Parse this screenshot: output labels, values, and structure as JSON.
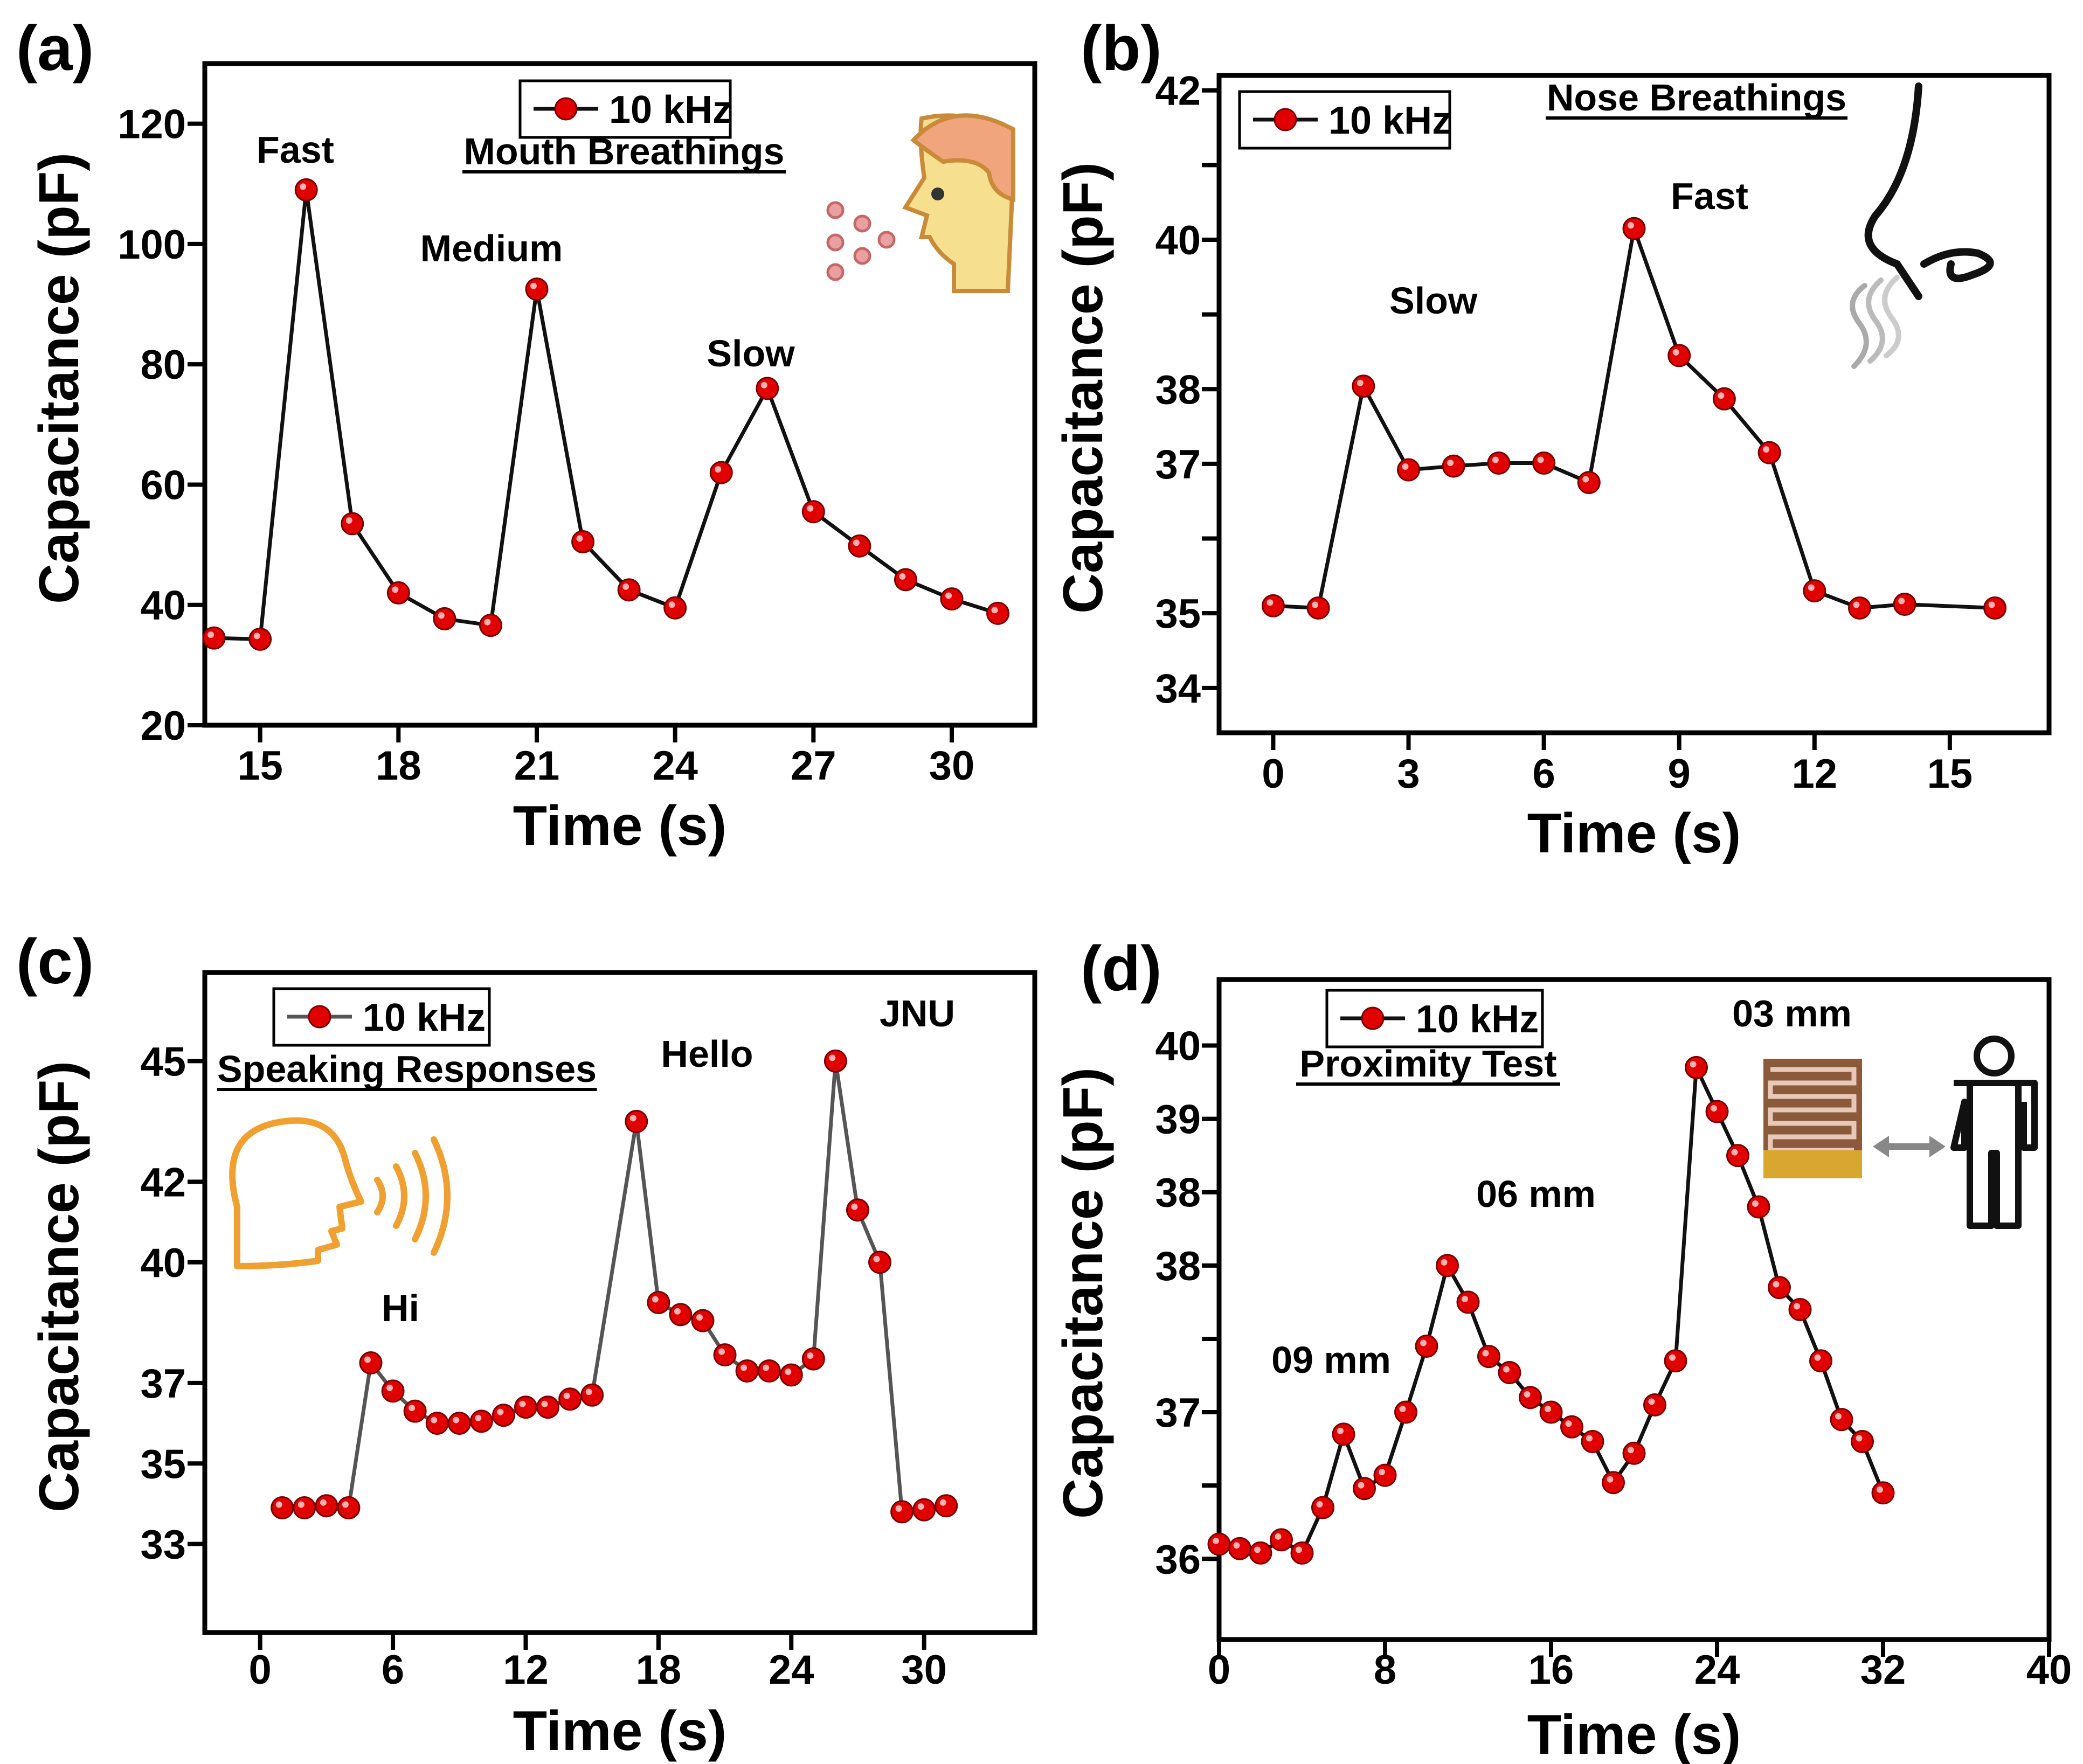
{
  "chart_data": [
    {
      "panel": "(a)",
      "type": "line",
      "xlabel": "Time (s)",
      "ylabel": "Capacitance (pF)",
      "xlim": [
        13.8,
        31.8
      ],
      "ylim": [
        20,
        130
      ],
      "xticks": [
        15,
        18,
        21,
        24,
        27,
        30
      ],
      "yticks": [
        20,
        40,
        60,
        80,
        100,
        120
      ],
      "ytick_labels": [
        "20",
        "40",
        "60",
        "80",
        "100",
        "120"
      ],
      "line_color": "#111111",
      "marker_color": "#e00000",
      "legend": {
        "label": "10 kHz",
        "position": "top-center"
      },
      "title_note": "Mouth Breathings",
      "icon": "face-exhaling-icon",
      "series": [
        {
          "name": "10 kHz",
          "x": [
            14,
            15,
            16,
            17,
            18,
            19,
            20,
            21,
            22,
            23,
            24,
            25,
            26,
            27,
            28,
            29,
            30,
            31
          ],
          "y": [
            34.5,
            34.3,
            109,
            53.5,
            42,
            37.7,
            36.6,
            92.5,
            50.5,
            42.5,
            39.5,
            62,
            76,
            55.5,
            49.8,
            44.2,
            41,
            38.6
          ]
        }
      ],
      "annotations": [
        {
          "text": "Fast",
          "x": 16,
          "y": 109
        },
        {
          "text": "Medium",
          "x": 21,
          "y": 92.5
        },
        {
          "text": "Slow",
          "x": 26,
          "y": 76
        }
      ]
    },
    {
      "panel": "(b)",
      "type": "line",
      "xlabel": "Time (s)",
      "ylabel": "Capacitance (pF)",
      "xlim": [
        -1.2,
        17.2
      ],
      "ylim": [
        33.4,
        42.2
      ],
      "xticks": [
        0,
        3,
        6,
        9,
        12,
        15
      ],
      "yticks": [
        34,
        35,
        36,
        37,
        38,
        39,
        40,
        41,
        42
      ],
      "ytick_labels": [
        "34",
        "35",
        "",
        "37",
        "38",
        "",
        "40",
        "",
        "42"
      ],
      "line_color": "#111111",
      "marker_color": "#e00000",
      "legend": {
        "label": "10 kHz",
        "position": "top-left"
      },
      "title_note": "Nose Breathings",
      "icon": "nose-icon",
      "series": [
        {
          "name": "10 kHz",
          "x": [
            0,
            1,
            2,
            3,
            4,
            5,
            6,
            7,
            8,
            9,
            10,
            11,
            12,
            13,
            14,
            16
          ],
          "y": [
            35.1,
            35.07,
            38.04,
            36.92,
            36.97,
            37.01,
            37.01,
            36.75,
            40.15,
            38.45,
            37.87,
            37.15,
            35.3,
            35.07,
            35.12,
            35.07
          ]
        }
      ],
      "annotations": [
        {
          "text": "Slow",
          "x": 2,
          "y": 38.04
        },
        {
          "text": "Fast",
          "x": 8,
          "y": 40.15
        }
      ]
    },
    {
      "panel": "(c)",
      "type": "line",
      "xlabel": "Time (s)",
      "ylabel": "Capacitance (pF)",
      "xlim": [
        -2.5,
        35.0
      ],
      "ylim": [
        30.8,
        47.2
      ],
      "xticks": [
        0,
        6,
        12,
        18,
        24,
        30
      ],
      "yticks": [
        33,
        35,
        37,
        40,
        42,
        45
      ],
      "ytick_labels": [
        "33",
        "35",
        "37",
        "40",
        "42",
        "45"
      ],
      "line_color": "#555555",
      "marker_color": "#e00000",
      "legend": {
        "label": "10 kHz",
        "position": "top-left"
      },
      "title_note": "Speaking Responses",
      "icon": "speaking-head-icon",
      "series": [
        {
          "name": "10 kHz",
          "x": [
            1,
            2,
            3,
            4,
            5,
            6,
            7,
            8,
            9,
            10,
            11,
            12,
            13,
            14,
            15,
            17,
            18,
            19,
            20,
            21,
            22,
            23,
            24,
            25,
            26,
            27,
            28,
            29,
            30,
            31
          ],
          "y": [
            33.9,
            33.9,
            33.95,
            33.9,
            37.5,
            36.8,
            36.3,
            36.0,
            36.0,
            36.05,
            36.2,
            36.4,
            36.4,
            36.6,
            36.7,
            43.5,
            39.0,
            38.7,
            38.55,
            37.7,
            37.3,
            37.3,
            37.2,
            37.6,
            45.0,
            41.3,
            40.0,
            33.8,
            33.85,
            33.95
          ]
        }
      ],
      "annotations": [
        {
          "text": "Hi",
          "x": 5,
          "y": 37.5
        },
        {
          "text": "Hello",
          "x": 17,
          "y": 43.5
        },
        {
          "text": "JNU",
          "x": 26,
          "y": 45.0
        }
      ]
    },
    {
      "panel": "(d)",
      "type": "line",
      "xlabel": "Time (s)",
      "ylabel": "Capacitance (pF)",
      "xlim": [
        0,
        40
      ],
      "ylim": [
        35.45,
        39.95
      ],
      "xticks": [
        0,
        8,
        16,
        24,
        32,
        40
      ],
      "yticks": [
        36,
        36.5,
        37,
        37.5,
        38,
        38.5,
        39,
        39.5
      ],
      "ytick_labels": [
        "36",
        "",
        "37",
        "",
        "38",
        "38",
        "39",
        "40"
      ],
      "line_color": "#111111",
      "marker_color": "#e00000",
      "legend": {
        "label": "10 kHz",
        "position": "top-left"
      },
      "title_note": "Proximity Test",
      "icon": "person-proximity-icon",
      "series": [
        {
          "name": "10 kHz",
          "x": [
            0,
            1,
            2,
            3,
            4,
            5,
            6,
            7,
            8,
            9,
            10,
            11,
            12,
            13,
            14,
            15,
            16,
            17,
            18,
            19,
            20,
            21,
            22,
            23,
            24,
            25,
            26,
            27,
            28,
            29,
            30,
            31,
            32
          ],
          "y": [
            36.1,
            36.07,
            36.04,
            36.13,
            36.04,
            36.35,
            36.85,
            36.48,
            36.57,
            37.0,
            37.45,
            38.0,
            37.75,
            37.38,
            37.27,
            37.1,
            37.0,
            36.9,
            36.8,
            36.52,
            36.72,
            37.05,
            37.35,
            39.35,
            39.05,
            38.75,
            38.4,
            37.85,
            37.7,
            37.35,
            36.95,
            36.8,
            36.45
          ]
        }
      ],
      "annotations": [
        {
          "text": "09 mm",
          "x": 6,
          "y": 36.85
        },
        {
          "text": "06 mm",
          "x": 11,
          "y": 38.0
        },
        {
          "text": "03 mm",
          "x": 23,
          "y": 39.35
        }
      ]
    }
  ]
}
